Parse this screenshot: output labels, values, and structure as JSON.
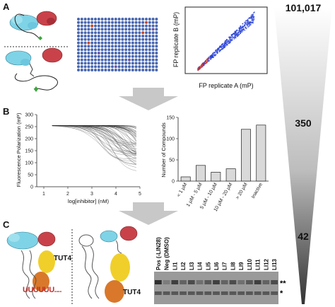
{
  "panels": {
    "a": "A",
    "b": "B",
    "c": "C"
  },
  "funnel": {
    "top": "101,017",
    "middle": "350",
    "bottom": "42"
  },
  "scatter": {
    "xlabel": "FP replicate A (mP)",
    "ylabel": "FP replicate B (mP)"
  },
  "curves": {
    "ylabel": "Fluorescence Polarization (mP)",
    "xlabel": "log[inhibitor] (nM)",
    "xticks": [
      "1",
      "2",
      "3",
      "4",
      "5"
    ],
    "yticks": [
      "0",
      "50",
      "100",
      "150",
      "200",
      "250",
      "300"
    ]
  },
  "chart_data": {
    "type": "bar",
    "ylabel": "Number of Compounds",
    "categories": [
      "< 1 µM",
      "1 µM - 5 µM",
      "5 µM - 10 µM",
      "10 µM - 20 µM",
      "> 20 µM",
      "Inactive"
    ],
    "values": [
      10,
      37,
      21,
      29,
      122,
      132
    ],
    "ylim": [
      0,
      150
    ],
    "yticks": [
      "0",
      "50",
      "100",
      "150"
    ]
  },
  "panel_c": {
    "tut4_left": "TUT4",
    "tut4_right": "TUT4",
    "uridines": "UUUUUU....",
    "lanes": [
      "Pos (-LIN28)",
      "Neg (DMSO)",
      "LI1",
      "LI2",
      "LI3",
      "LI4",
      "LI5",
      "LI6",
      "LI7",
      "LI8",
      "LI9",
      "LI10",
      "LI11",
      "LI12",
      "LI13"
    ],
    "marker_double": "**",
    "marker_single": "*"
  },
  "colors": {
    "blue": "#2b44d6",
    "red": "#d43a2a",
    "protein_cyan": "#7fd3e6",
    "protein_red": "#c9424a",
    "tut4_yellow": "#f0cf2a",
    "tut4_orange": "#d9782a"
  }
}
